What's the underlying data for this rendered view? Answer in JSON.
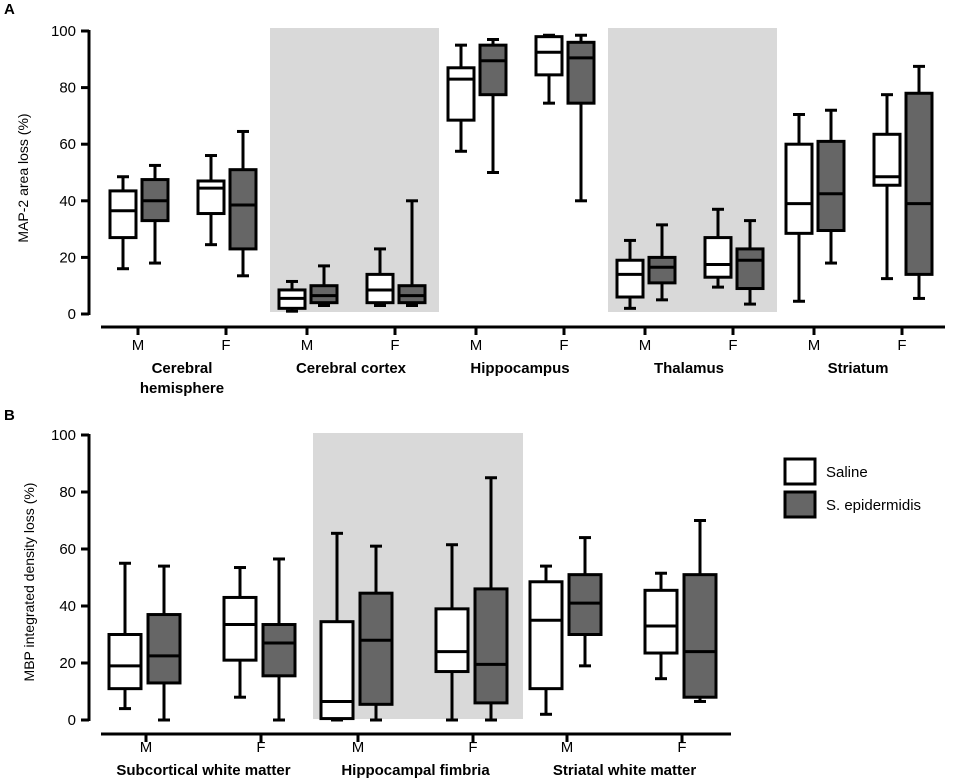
{
  "colors": {
    "saline": "#ffffff",
    "sepidermidis": "#666666",
    "shade": "#d9d9d9",
    "stroke": "#000000"
  },
  "legend": {
    "saline": "Saline",
    "sepidermidis": "S. epidermidis"
  },
  "chart_data": [
    {
      "panel": "A",
      "type": "box",
      "ylabel": "MAP-2 area loss (%)",
      "ylim": [
        0,
        100
      ],
      "yticks": [
        0,
        20,
        40,
        60,
        80,
        100
      ],
      "groups": [
        {
          "name": "Cerebral hemisphere",
          "lines": [
            "Cerebral",
            "hemisphere"
          ],
          "shaded": false,
          "categories": [
            {
              "label": "M",
              "saline": {
                "min": 16,
                "q1": 27,
                "median": 36.5,
                "q3": 43.5,
                "max": 48.5
              },
              "sepidermidis": {
                "min": 18,
                "q1": 33,
                "median": 40,
                "q3": 47.5,
                "max": 52.5
              }
            },
            {
              "label": "F",
              "saline": {
                "min": 24.5,
                "q1": 35.5,
                "median": 44.5,
                "q3": 47,
                "max": 56
              },
              "sepidermidis": {
                "min": 13.5,
                "q1": 23,
                "median": 38.5,
                "q3": 51,
                "max": 64.5
              }
            }
          ]
        },
        {
          "name": "Cerebral cortex",
          "lines": [
            "Cerebral cortex"
          ],
          "shaded": true,
          "categories": [
            {
              "label": "M",
              "saline": {
                "min": 1,
                "q1": 2,
                "median": 5.5,
                "q3": 8.5,
                "max": 11.5
              },
              "sepidermidis": {
                "min": 3,
                "q1": 4,
                "median": 6.5,
                "q3": 10,
                "max": 17
              }
            },
            {
              "label": "F",
              "saline": {
                "min": 3,
                "q1": 4,
                "median": 8.5,
                "q3": 14,
                "max": 23
              },
              "sepidermidis": {
                "min": 3,
                "q1": 4,
                "median": 6.5,
                "q3": 10,
                "max": 40
              }
            }
          ]
        },
        {
          "name": "Hippocampus",
          "lines": [
            "Hippocampus"
          ],
          "shaded": false,
          "categories": [
            {
              "label": "M",
              "saline": {
                "min": 57.5,
                "q1": 68.5,
                "median": 83,
                "q3": 87,
                "max": 95
              },
              "sepidermidis": {
                "min": 50,
                "q1": 77.5,
                "median": 89.5,
                "q3": 95,
                "max": 97
              }
            },
            {
              "label": "F",
              "saline": {
                "min": 74.5,
                "q1": 84.5,
                "median": 92.5,
                "q3": 98,
                "max": 98.5
              },
              "sepidermidis": {
                "min": 40,
                "q1": 74.5,
                "median": 90.5,
                "q3": 96,
                "max": 98.5
              }
            }
          ]
        },
        {
          "name": "Thalamus",
          "lines": [
            "Thalamus"
          ],
          "shaded": true,
          "categories": [
            {
              "label": "M",
              "saline": {
                "min": 2,
                "q1": 6,
                "median": 14,
                "q3": 19,
                "max": 26
              },
              "sepidermidis": {
                "min": 5,
                "q1": 11,
                "median": 16.5,
                "q3": 20,
                "max": 31.5
              }
            },
            {
              "label": "F",
              "saline": {
                "min": 9.5,
                "q1": 13,
                "median": 17.5,
                "q3": 27,
                "max": 37
              },
              "sepidermidis": {
                "min": 3.5,
                "q1": 9,
                "median": 19,
                "q3": 23,
                "max": 33
              }
            }
          ]
        },
        {
          "name": "Striatum",
          "lines": [
            "Striatum"
          ],
          "shaded": false,
          "categories": [
            {
              "label": "M",
              "saline": {
                "min": 4.5,
                "q1": 28.5,
                "median": 39,
                "q3": 60,
                "max": 70.5
              },
              "sepidermidis": {
                "min": 18,
                "q1": 29.5,
                "median": 42.5,
                "q3": 61,
                "max": 72
              }
            },
            {
              "label": "F",
              "saline": {
                "min": 12.5,
                "q1": 45.5,
                "median": 48.5,
                "q3": 63.5,
                "max": 77.5
              },
              "sepidermidis": {
                "min": 5.5,
                "q1": 14,
                "median": 39,
                "q3": 78,
                "max": 87.5
              }
            }
          ]
        }
      ]
    },
    {
      "panel": "B",
      "type": "box",
      "ylabel": "MBP integrated density loss (%)",
      "ylim": [
        0,
        100
      ],
      "yticks": [
        0,
        20,
        40,
        60,
        80,
        100
      ],
      "groups": [
        {
          "name": "Subcortical white matter",
          "lines": [
            "Subcortical white matter"
          ],
          "shaded": false,
          "categories": [
            {
              "label": "M",
              "saline": {
                "min": 4,
                "q1": 11,
                "median": 19,
                "q3": 30,
                "max": 55
              },
              "sepidermidis": {
                "min": 0,
                "q1": 13,
                "median": 22.5,
                "q3": 37,
                "max": 54
              }
            },
            {
              "label": "F",
              "saline": {
                "min": 8,
                "q1": 21,
                "median": 33.5,
                "q3": 43,
                "max": 53.5
              },
              "sepidermidis": {
                "min": 0,
                "q1": 15.5,
                "median": 27,
                "q3": 33.5,
                "max": 56.5
              }
            }
          ]
        },
        {
          "name": "Hippocampal fimbria",
          "lines": [
            "Hippocampal fimbria"
          ],
          "shaded": true,
          "categories": [
            {
              "label": "M",
              "saline": {
                "min": 0,
                "q1": 0.5,
                "median": 6.5,
                "q3": 34.5,
                "max": 65.5
              },
              "sepidermidis": {
                "min": 0,
                "q1": 5.5,
                "median": 28,
                "q3": 44.5,
                "max": 61
              }
            },
            {
              "label": "F",
              "saline": {
                "min": 0,
                "q1": 17,
                "median": 24,
                "q3": 39,
                "max": 61.5
              },
              "sepidermidis": {
                "min": 0,
                "q1": 6,
                "median": 19.5,
                "q3": 46,
                "max": 85
              }
            }
          ]
        },
        {
          "name": "Striatal white matter",
          "lines": [
            "Striatal white matter"
          ],
          "shaded": false,
          "categories": [
            {
              "label": "M",
              "saline": {
                "min": 2,
                "q1": 11,
                "median": 35,
                "q3": 48.5,
                "max": 54
              },
              "sepidermidis": {
                "min": 19,
                "q1": 30,
                "median": 41,
                "q3": 51,
                "max": 64
              }
            },
            {
              "label": "F",
              "saline": {
                "min": 14.5,
                "q1": 23.5,
                "median": 33,
                "q3": 45.5,
                "max": 51.5
              },
              "sepidermidis": {
                "min": 6.5,
                "q1": 8,
                "median": 24,
                "q3": 51,
                "max": 70
              }
            }
          ]
        }
      ]
    }
  ]
}
